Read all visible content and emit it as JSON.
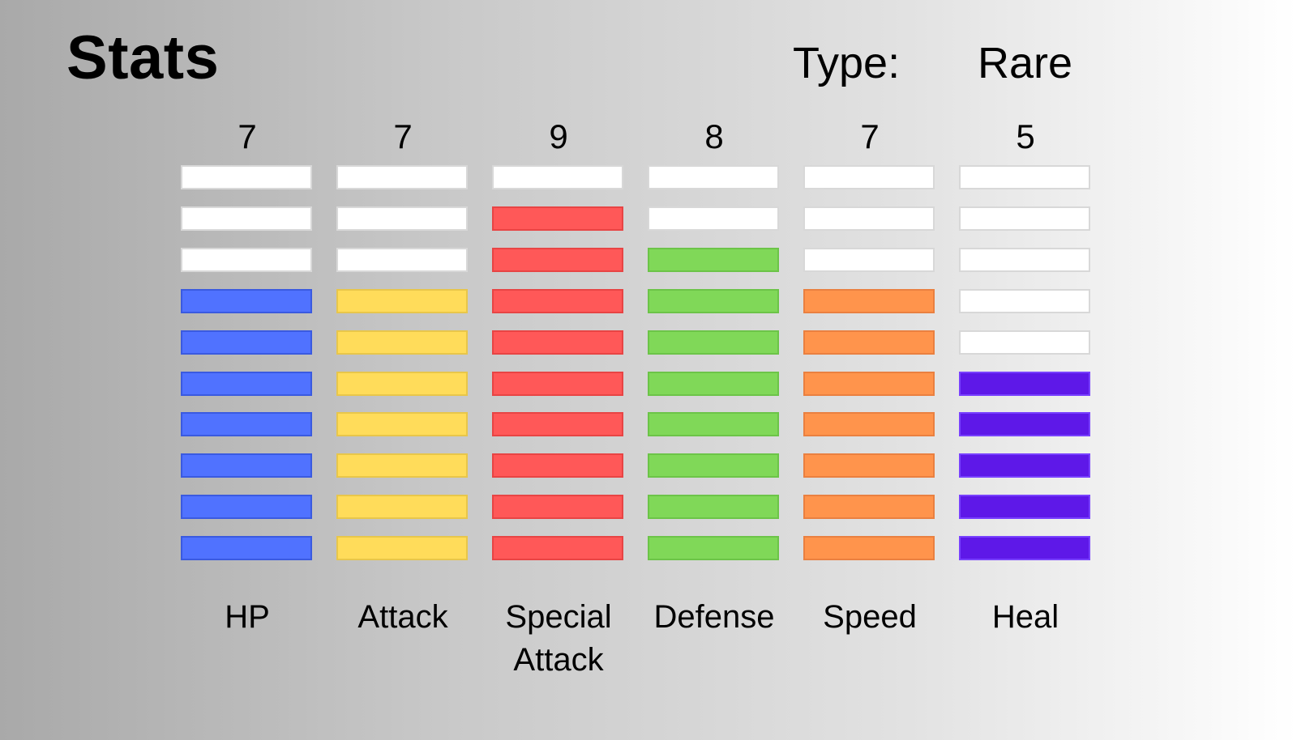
{
  "header": {
    "title": "Stats",
    "type_label": "Type:",
    "type_value": "Rare"
  },
  "stat_max": 10,
  "stats": [
    {
      "label": "HP",
      "value": "7",
      "level": 7,
      "color": "#5072ff",
      "border": "#3a5ae0"
    },
    {
      "label": "Attack",
      "value": "7",
      "level": 7,
      "color": "#ffdc5a",
      "border": "#e8c64a"
    },
    {
      "label": "Special\nAttack",
      "value": "9",
      "level": 9,
      "color": "#ff5858",
      "border": "#e84444"
    },
    {
      "label": "Defense",
      "value": "8",
      "level": 8,
      "color": "#80d858",
      "border": "#6cc448"
    },
    {
      "label": "Speed",
      "value": "7",
      "level": 7,
      "color": "#ff944c",
      "border": "#ea8040"
    },
    {
      "label": "Heal",
      "value": "5",
      "level": 5,
      "color": "#5e18e8",
      "border": "#7840ff"
    }
  ],
  "empty_color": "#ffffff"
}
